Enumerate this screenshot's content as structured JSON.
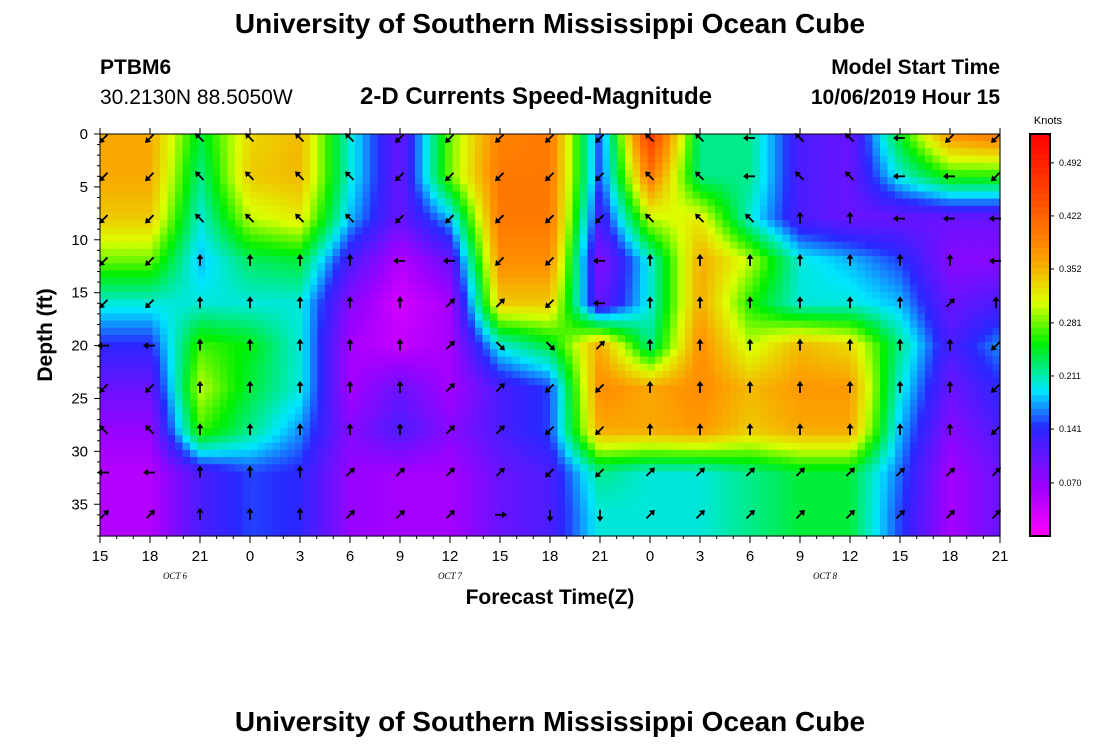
{
  "header": {
    "title": "University of Southern Mississippi Ocean Cube",
    "station": "PTBM6",
    "coords": "30.2130N 88.5050W",
    "subtitle": "2-D Currents Speed-Magnitude",
    "model_start_label": "Model Start Time",
    "model_start_value": "10/06/2019 Hour 15"
  },
  "footer": {
    "title": "University of Southern Mississippi Ocean Cube"
  },
  "chart_data": {
    "type": "heatmap",
    "title": "2-D Currents Speed-Magnitude",
    "xlabel": "Forecast Time(Z)",
    "ylabel": "Depth (ft)",
    "x_tick_labels": [
      "15",
      "18",
      "21",
      "0",
      "3",
      "6",
      "9",
      "12",
      "15",
      "18",
      "21",
      "0",
      "3",
      "6",
      "9",
      "12",
      "15",
      "18",
      "21"
    ],
    "date_labels": [
      {
        "label": "OCT 6",
        "x_index": 1.5
      },
      {
        "label": "OCT 7",
        "x_index": 7
      },
      {
        "label": "OCT 8",
        "x_index": 14.5
      }
    ],
    "x_hours_range": [
      0,
      54
    ],
    "y_ticks": [
      0,
      5,
      10,
      15,
      20,
      25,
      30,
      35
    ],
    "ylim": [
      0,
      38
    ],
    "y_inverted": true,
    "colorbar": {
      "unit": "Knots",
      "vmin": 0.0,
      "vmax": 0.53,
      "tick_values": [
        0.492,
        0.422,
        0.352,
        0.281,
        0.211,
        0.141,
        0.07
      ],
      "tick_labels": [
        "0.492",
        "0.422",
        "0.352",
        "0.281",
        "0.211",
        "0.141",
        "0.070"
      ]
    },
    "depths": [
      0,
      4,
      8,
      12,
      16,
      20,
      24,
      28,
      32,
      36
    ],
    "times_h": [
      0,
      3,
      6,
      9,
      12,
      15,
      18,
      21,
      24,
      27,
      30,
      33,
      36,
      39,
      42,
      45,
      48,
      51,
      54
    ],
    "speed_knots": [
      [
        0.36,
        0.36,
        0.24,
        0.33,
        0.35,
        0.2,
        0.1,
        0.28,
        0.39,
        0.4,
        0.15,
        0.47,
        0.22,
        0.22,
        0.12,
        0.1,
        0.25,
        0.38,
        0.4
      ],
      [
        0.36,
        0.36,
        0.22,
        0.34,
        0.35,
        0.2,
        0.1,
        0.28,
        0.4,
        0.4,
        0.15,
        0.4,
        0.22,
        0.22,
        0.12,
        0.1,
        0.2,
        0.26,
        0.26
      ],
      [
        0.34,
        0.34,
        0.2,
        0.3,
        0.32,
        0.18,
        0.1,
        0.18,
        0.4,
        0.4,
        0.12,
        0.3,
        0.32,
        0.2,
        0.12,
        0.1,
        0.1,
        0.1,
        0.1
      ],
      [
        0.28,
        0.28,
        0.18,
        0.23,
        0.24,
        0.12,
        0.05,
        0.1,
        0.38,
        0.38,
        0.08,
        0.2,
        0.36,
        0.3,
        0.2,
        0.18,
        0.15,
        0.08,
        0.08
      ],
      [
        0.2,
        0.2,
        0.2,
        0.2,
        0.2,
        0.08,
        0.03,
        0.06,
        0.34,
        0.34,
        0.1,
        0.2,
        0.36,
        0.26,
        0.2,
        0.2,
        0.18,
        0.1,
        0.12
      ],
      [
        0.14,
        0.14,
        0.27,
        0.25,
        0.2,
        0.06,
        0.04,
        0.06,
        0.2,
        0.24,
        0.36,
        0.22,
        0.38,
        0.3,
        0.35,
        0.33,
        0.22,
        0.12,
        0.17
      ],
      [
        0.1,
        0.1,
        0.3,
        0.24,
        0.2,
        0.06,
        0.1,
        0.06,
        0.12,
        0.15,
        0.38,
        0.36,
        0.38,
        0.35,
        0.37,
        0.37,
        0.2,
        0.1,
        0.14
      ],
      [
        0.07,
        0.07,
        0.27,
        0.22,
        0.17,
        0.08,
        0.12,
        0.08,
        0.12,
        0.15,
        0.36,
        0.36,
        0.37,
        0.34,
        0.36,
        0.36,
        0.18,
        0.08,
        0.12
      ],
      [
        0.05,
        0.05,
        0.12,
        0.15,
        0.14,
        0.07,
        0.06,
        0.06,
        0.1,
        0.12,
        0.22,
        0.2,
        0.2,
        0.22,
        0.24,
        0.24,
        0.16,
        0.06,
        0.1
      ],
      [
        0.05,
        0.05,
        0.12,
        0.15,
        0.14,
        0.07,
        0.06,
        0.06,
        0.1,
        0.12,
        0.2,
        0.2,
        0.2,
        0.22,
        0.24,
        0.24,
        0.15,
        0.06,
        0.1
      ]
    ],
    "direction_deg_rows": [
      [
        225,
        225,
        315,
        315,
        315,
        315,
        225,
        225,
        225,
        225,
        225,
        315,
        315,
        270,
        315,
        315,
        270,
        225,
        225
      ],
      [
        225,
        225,
        315,
        315,
        315,
        315,
        225,
        225,
        225,
        225,
        225,
        315,
        315,
        270,
        315,
        315,
        270,
        270,
        225
      ],
      [
        225,
        225,
        315,
        315,
        315,
        315,
        225,
        225,
        225,
        225,
        225,
        315,
        315,
        315,
        0,
        0,
        270,
        270,
        270
      ],
      [
        225,
        225,
        0,
        0,
        0,
        0,
        270,
        270,
        225,
        225,
        270,
        0,
        0,
        0,
        0,
        0,
        0,
        0,
        270
      ],
      [
        225,
        225,
        0,
        0,
        0,
        0,
        0,
        45,
        45,
        225,
        270,
        0,
        0,
        0,
        0,
        0,
        0,
        45,
        0
      ],
      [
        270,
        270,
        0,
        0,
        0,
        0,
        0,
        45,
        135,
        135,
        45,
        0,
        0,
        0,
        0,
        0,
        0,
        0,
        225
      ],
      [
        225,
        225,
        0,
        0,
        0,
        0,
        0,
        45,
        45,
        225,
        225,
        0,
        0,
        0,
        0,
        0,
        0,
        0,
        225
      ],
      [
        315,
        315,
        0,
        0,
        0,
        0,
        0,
        45,
        45,
        225,
        225,
        0,
        0,
        0,
        0,
        0,
        0,
        0,
        225
      ],
      [
        270,
        270,
        0,
        0,
        0,
        45,
        45,
        45,
        45,
        225,
        225,
        45,
        45,
        45,
        45,
        45,
        45,
        45,
        45
      ],
      [
        45,
        45,
        0,
        0,
        0,
        45,
        45,
        45,
        90,
        180,
        180,
        45,
        45,
        45,
        45,
        45,
        45,
        45,
        45
      ]
    ]
  }
}
